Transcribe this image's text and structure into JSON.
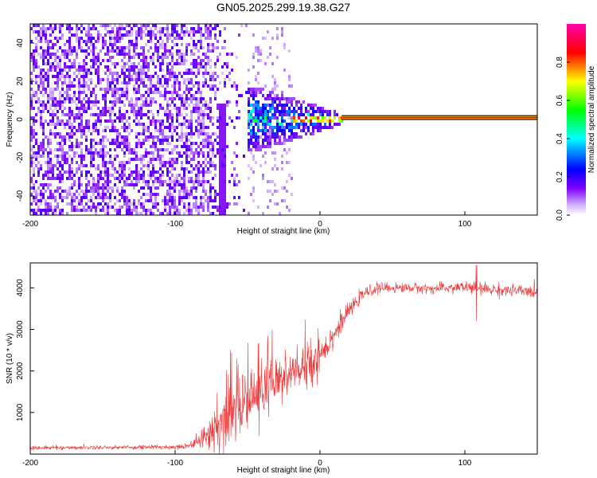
{
  "title": "GN05.2025.299.19.38.G27",
  "chart_data": [
    {
      "type": "heatmap",
      "title": "GN05.2025.299.19.38.G27",
      "xlabel": "Height of straight line (km)",
      "ylabel": "Frequency (Hz)",
      "xlim": [
        -200,
        150
      ],
      "ylim": [
        -50,
        50
      ],
      "xticks": [
        -200,
        -100,
        0,
        100
      ],
      "yticks": [
        -40,
        -20,
        0,
        20,
        40
      ],
      "colorbar": {
        "label": "Normalized spectral amplitude",
        "range": [
          0.0,
          1.0
        ],
        "ticks": [
          0.0,
          0.2,
          0.4,
          0.6,
          0.8
        ],
        "tick_labels": [
          "0.0",
          "0.2",
          "0.4",
          "0.6",
          "0.8"
        ],
        "colors": [
          "#ffffff",
          "#7f00ff",
          "#0000ff",
          "#00ffff",
          "#00ff00",
          "#ffff00",
          "#ff0000",
          "#ff00ff"
        ]
      },
      "features": {
        "noise_region_km": [
          -200,
          -50
        ],
        "noise_amplitude": 0.12,
        "transition_region_km": [
          -70,
          15
        ],
        "transition_amplitude": 0.45,
        "vertical_streak_km": -68,
        "line_frequency_hz": 1,
        "line_start_km": 15,
        "line_end_km": 150,
        "line_amplitude": 1.0
      }
    },
    {
      "type": "line",
      "title": "",
      "xlabel": "Height of straight line (km)",
      "ylabel": "SNR (10 * v/v)",
      "xlim": [
        -200,
        150
      ],
      "ylim": [
        0,
        4600
      ],
      "xticks": [
        -200,
        -100,
        0,
        100
      ],
      "yticks": [
        1000,
        2000,
        3000,
        4000
      ],
      "color": "#ee3333",
      "series": [
        {
          "name": "SNR",
          "x": [
            -200,
            -150,
            -100,
            -90,
            -80,
            -70,
            -60,
            -50,
            -40,
            -30,
            -20,
            -10,
            0,
            10,
            20,
            30,
            40,
            60,
            80,
            100,
            120,
            150
          ],
          "values": [
            150,
            160,
            170,
            210,
            380,
            700,
            1050,
            1300,
            1500,
            1700,
            1900,
            2100,
            2400,
            2900,
            3450,
            3850,
            4000,
            4000,
            3980,
            4020,
            3950,
            3900
          ],
          "noise_std": [
            40,
            40,
            50,
            70,
            200,
            500,
            650,
            650,
            600,
            550,
            500,
            450,
            400,
            250,
            150,
            120,
            110,
            100,
            100,
            130,
            130,
            120
          ]
        }
      ],
      "spikes": [
        {
          "x": 108,
          "min": 3200,
          "max": 4550
        }
      ]
    }
  ]
}
